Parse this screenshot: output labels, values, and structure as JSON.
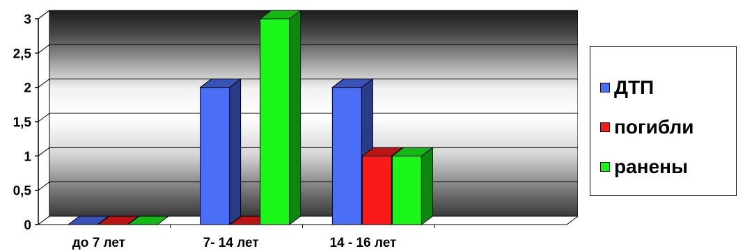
{
  "chart_data": {
    "type": "bar",
    "categories": [
      "до 7 лет",
      "7- 14 лет",
      "14 - 16 лет",
      ""
    ],
    "series": [
      {
        "name": "ДТП",
        "values": [
          0,
          2,
          2,
          null
        ],
        "color": "#4a6ef5"
      },
      {
        "name": "погибли",
        "values": [
          0,
          0,
          1,
          null
        ],
        "color": "#fa1a1a"
      },
      {
        "name": "ранены",
        "values": [
          0,
          3,
          1,
          null
        ],
        "color": "#1af51a"
      }
    ],
    "y_ticks": [
      "0",
      "0,5",
      "1",
      "1,5",
      "2",
      "2,5",
      "3"
    ],
    "ylim": [
      0,
      3
    ],
    "grid": true,
    "legend_position": "right",
    "style": "3d-clustered-column"
  }
}
